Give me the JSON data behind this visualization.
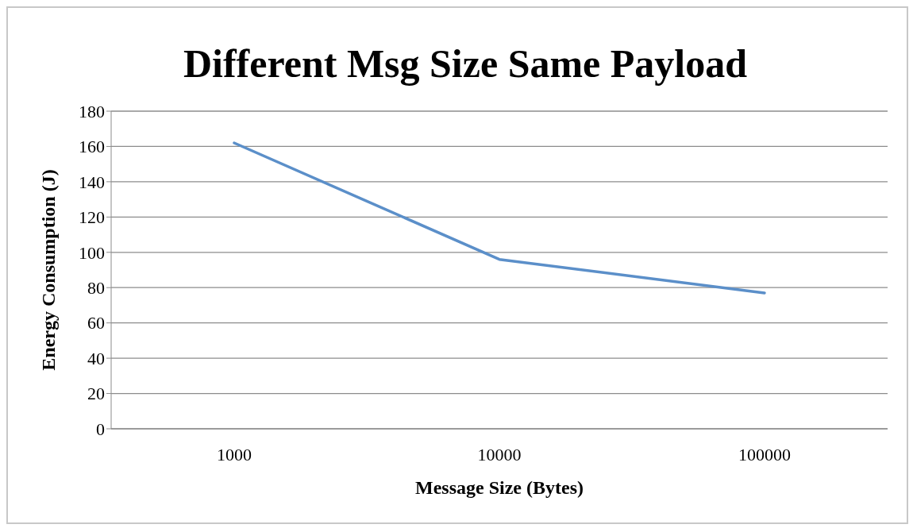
{
  "chart_data": {
    "type": "line",
    "title": "Different Msg Size Same Payload",
    "xlabel": "Message Size (Bytes)",
    "ylabel": "Energy Consumption (J)",
    "categories": [
      "1000",
      "10000",
      "100000"
    ],
    "series": [
      {
        "color": "#5b8fc9",
        "values": [
          162,
          96,
          77
        ]
      }
    ],
    "ylim": [
      0,
      180
    ],
    "yticks": [
      0,
      20,
      40,
      60,
      80,
      100,
      120,
      140,
      160,
      180
    ],
    "grid": "y",
    "marker": "none",
    "line_style": "solid"
  }
}
